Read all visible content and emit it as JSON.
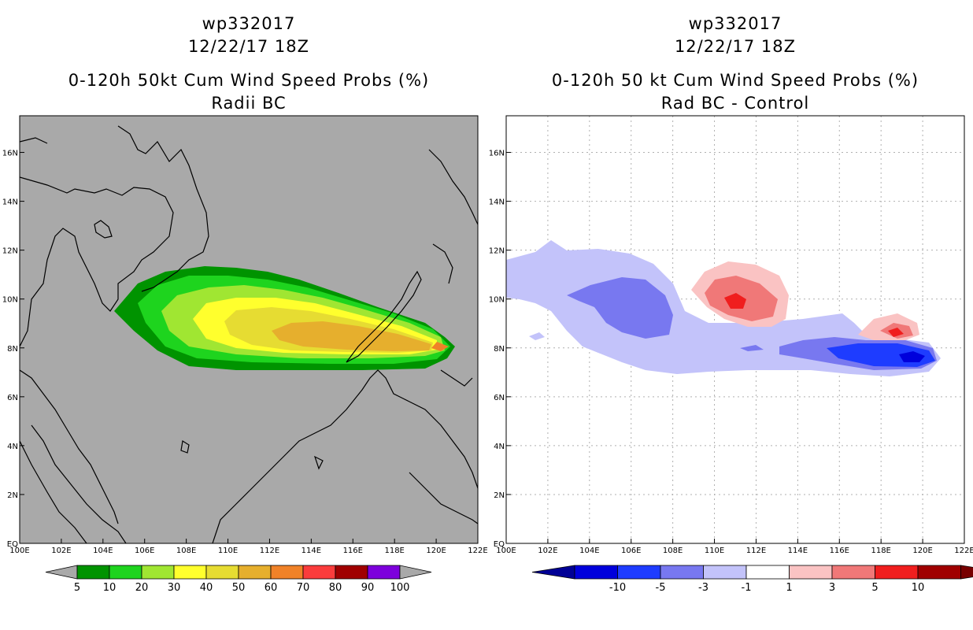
{
  "left_panel": {
    "storm_id": "wp332017",
    "datetime": "12/22/17 18Z",
    "product": "0-120h 50kt Cum Wind Speed Probs (%)",
    "subtitle": "Radii BC",
    "colorbar": {
      "labels": [
        "5",
        "10",
        "20",
        "30",
        "40",
        "50",
        "60",
        "70",
        "80",
        "90",
        "100"
      ],
      "colors": [
        "#009300",
        "#1ed41e",
        "#a0e632",
        "#ffff2d",
        "#e6dc32",
        "#e6af2d",
        "#f08228",
        "#fa3c3c",
        "#a00000",
        "#7d00dc"
      ]
    },
    "background_color": "#a9a9a9"
  },
  "right_panel": {
    "storm_id": "wp332017",
    "datetime": "12/22/17 18Z",
    "product": "0-120h 50 kt Cum Wind Speed Probs (%)",
    "subtitle": "Rad BC - Control",
    "colorbar": {
      "labels": [
        "-10",
        "-5",
        "-3",
        "-1",
        "1",
        "3",
        "5",
        "10"
      ],
      "colors": [
        "#0000dc",
        "#1e3cff",
        "#7878f0",
        "#c3c3fa",
        "#ffffff",
        "#fac3c3",
        "#f07878",
        "#f01e1e",
        "#a00000"
      ],
      "end_colors": {
        "low": "#000096",
        "high": "#780000"
      }
    },
    "background_color": "#ffffff"
  },
  "map": {
    "lon_labels": [
      "100E",
      "102E",
      "104E",
      "106E",
      "108E",
      "110E",
      "112E",
      "114E",
      "116E",
      "118E",
      "120E",
      "122E"
    ],
    "lat_labels": [
      "EQ",
      "2N",
      "4N",
      "6N",
      "8N",
      "10N",
      "12N",
      "14N",
      "16N"
    ]
  }
}
